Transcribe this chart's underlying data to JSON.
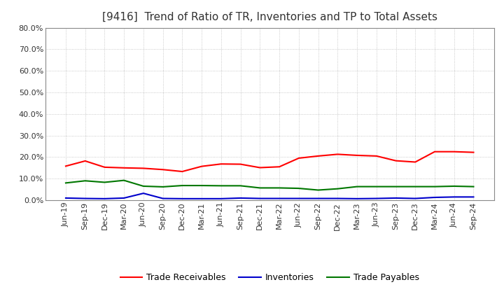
{
  "title": "[9416]  Trend of Ratio of TR, Inventories and TP to Total Assets",
  "x_labels": [
    "Jun-19",
    "Sep-19",
    "Dec-19",
    "Mar-20",
    "Jun-20",
    "Sep-20",
    "Dec-20",
    "Mar-21",
    "Jun-21",
    "Sep-21",
    "Dec-21",
    "Mar-22",
    "Jun-22",
    "Sep-22",
    "Dec-22",
    "Mar-23",
    "Jun-23",
    "Sep-23",
    "Dec-23",
    "Mar-24",
    "Jun-24",
    "Sep-24"
  ],
  "trade_receivables": [
    0.158,
    0.182,
    0.153,
    0.15,
    0.148,
    0.142,
    0.133,
    0.157,
    0.168,
    0.167,
    0.151,
    0.155,
    0.195,
    0.205,
    0.213,
    0.208,
    0.205,
    0.183,
    0.177,
    0.225,
    0.225,
    0.222
  ],
  "inventories": [
    0.01,
    0.008,
    0.007,
    0.01,
    0.032,
    0.008,
    0.007,
    0.007,
    0.007,
    0.01,
    0.008,
    0.008,
    0.008,
    0.008,
    0.008,
    0.007,
    0.008,
    0.01,
    0.008,
    0.013,
    0.015,
    0.015
  ],
  "trade_payables": [
    0.08,
    0.09,
    0.083,
    0.092,
    0.065,
    0.062,
    0.068,
    0.068,
    0.067,
    0.067,
    0.057,
    0.057,
    0.055,
    0.047,
    0.053,
    0.063,
    0.063,
    0.063,
    0.063,
    0.063,
    0.065,
    0.063
  ],
  "ylim": [
    0.0,
    0.8
  ],
  "yticks": [
    0.0,
    0.1,
    0.2,
    0.3,
    0.4,
    0.5,
    0.6,
    0.7,
    0.8
  ],
  "color_tr": "#FF0000",
  "color_inv": "#0000CC",
  "color_tp": "#007700",
  "legend_labels": [
    "Trade Receivables",
    "Inventories",
    "Trade Payables"
  ],
  "background_color": "#FFFFFF",
  "plot_bg_color": "#FFFFFF",
  "grid_color": "#BBBBBB",
  "title_fontsize": 11,
  "title_color": "#333333",
  "axis_fontsize": 8,
  "legend_fontsize": 9,
  "line_width": 1.5
}
